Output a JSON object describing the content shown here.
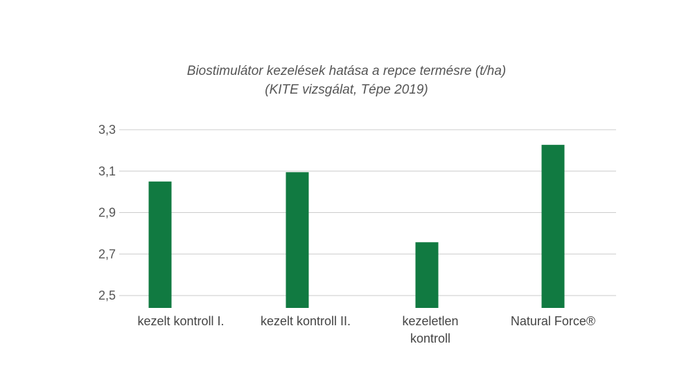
{
  "chart_data": {
    "type": "bar",
    "title": [
      "Biostimulátor kezelések hatása a repce termésre (t/ha)",
      "(KITE vizsgálat, Tépe 2019)"
    ],
    "categories": [
      [
        "kezelt kontroll I."
      ],
      [
        "kezelt kontroll II."
      ],
      [
        "kezeletlen",
        "kontroll"
      ],
      [
        "Natural Force®"
      ]
    ],
    "values": [
      3.05,
      3.095,
      2.757,
      3.227
    ],
    "yticks": [
      "3,3",
      "3,1",
      "2,9",
      "2,7",
      "2,5"
    ],
    "ytick_values": [
      3.3,
      3.1,
      2.9,
      2.7,
      2.5
    ],
    "ylim": [
      2.44,
      3.3
    ],
    "grid": true,
    "bar_color": "#117a41",
    "grid_color": "#cccccc"
  }
}
